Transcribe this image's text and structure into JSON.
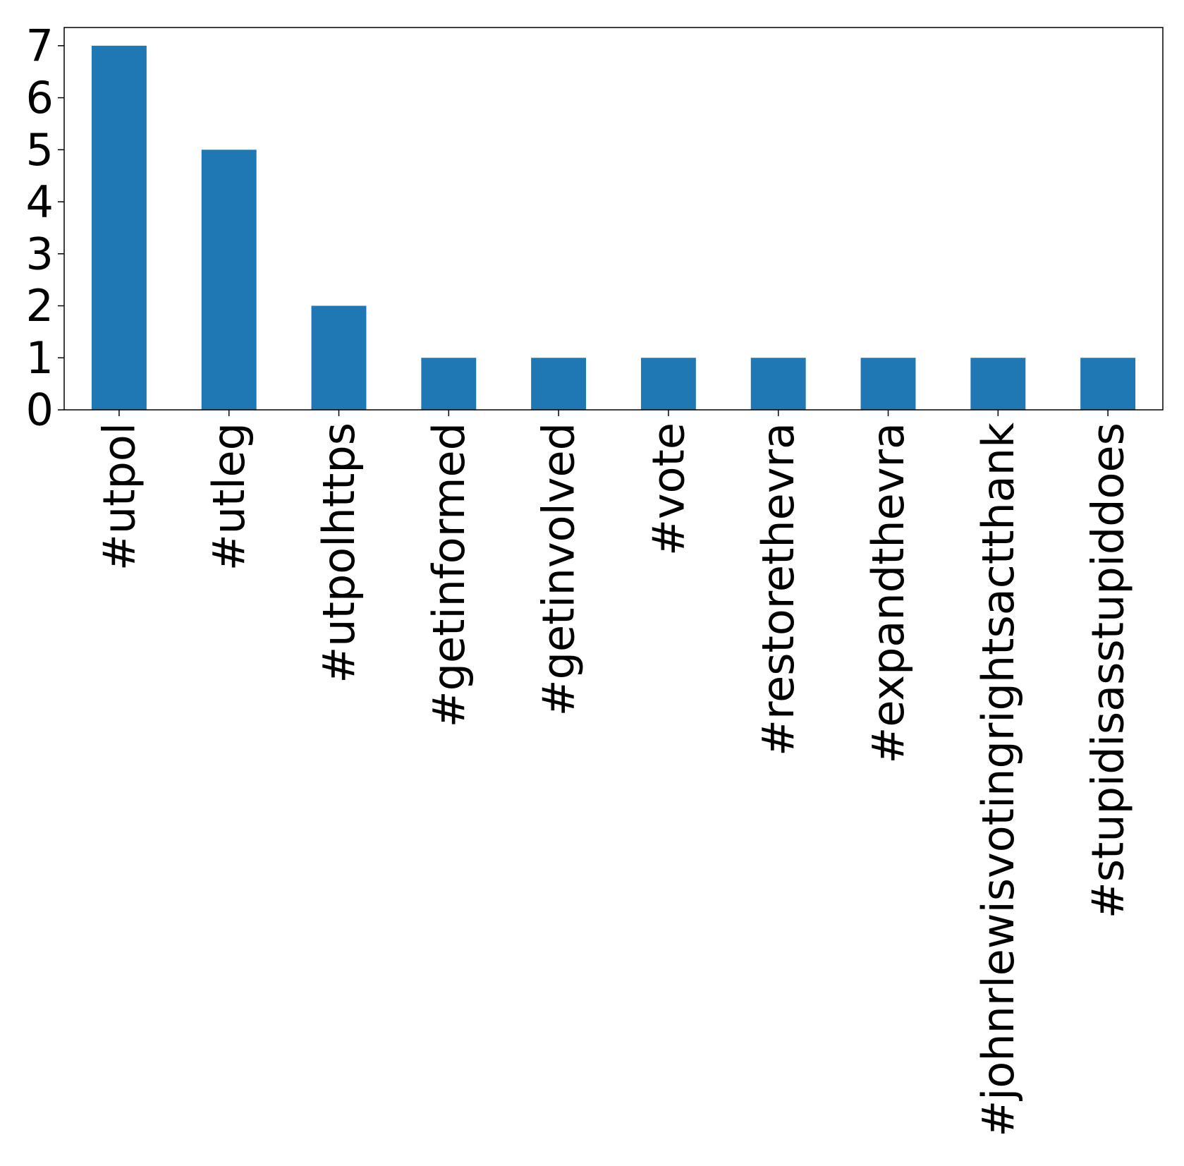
{
  "chart_data": {
    "type": "bar",
    "title": "",
    "xlabel": "",
    "ylabel": "",
    "categories": [
      "#utpol",
      "#utleg",
      "#utpolhttps",
      "#getinformed",
      "#getinvolved",
      "#vote",
      "#restorethevra",
      "#expandthevra",
      "#johnrlewisvotingrightsactthank",
      "#stupidisasstupiddoes"
    ],
    "values": [
      7,
      5,
      2,
      1,
      1,
      1,
      1,
      1,
      1,
      1
    ],
    "ylim": [
      0,
      7.35
    ],
    "yticks": [
      "0",
      "1",
      "2",
      "3",
      "4",
      "5",
      "6",
      "7"
    ],
    "grid": false,
    "legend": "none",
    "bar_color": "#1f77b4"
  }
}
